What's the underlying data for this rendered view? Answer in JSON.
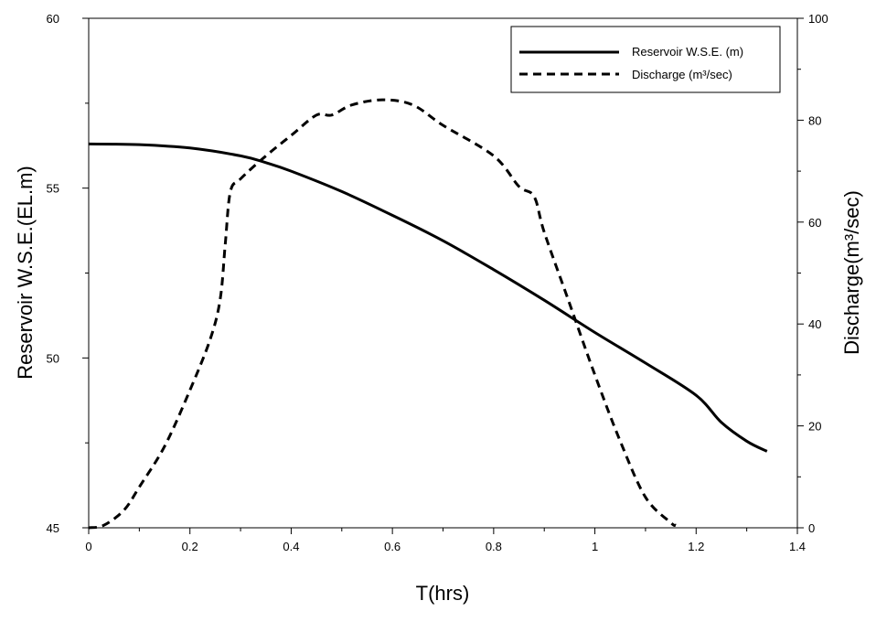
{
  "chart_data": {
    "type": "line",
    "title": "",
    "xlabel": "T(hrs)",
    "ylabel_left": "Reservoir W.S.E.(EL.m)",
    "ylabel_right": "Discharge(m³/sec)",
    "xlim": [
      0,
      1.4
    ],
    "ylim_left": [
      45,
      60
    ],
    "ylim_right": [
      0,
      100
    ],
    "x_ticks": [
      "0",
      "0.2",
      "0.4",
      "0.6",
      "0.8",
      "1",
      "1.2",
      "1.4"
    ],
    "y_left_ticks": [
      "45",
      "50",
      "55",
      "60"
    ],
    "y_right_ticks": [
      "0",
      "20",
      "40",
      "60",
      "80",
      "100"
    ],
    "grid": false,
    "legend_position": "top-right",
    "series": [
      {
        "name": "Reservoir W.S.E. (m)",
        "axis": "left",
        "style": "solid",
        "color": "#000000",
        "x": [
          0,
          0.1,
          0.2,
          0.3,
          0.35,
          0.4,
          0.5,
          0.6,
          0.7,
          0.8,
          0.9,
          1.0,
          1.1,
          1.2,
          1.25,
          1.3,
          1.34
        ],
        "y": [
          56.3,
          56.28,
          56.18,
          55.95,
          55.75,
          55.5,
          54.9,
          54.2,
          53.45,
          52.6,
          51.7,
          50.75,
          49.85,
          48.9,
          48.1,
          47.55,
          47.25
        ]
      },
      {
        "name": "Discharge (m³/sec)",
        "axis": "right",
        "style": "dashed",
        "color": "#000000",
        "x": [
          0,
          0.03,
          0.07,
          0.1,
          0.15,
          0.2,
          0.24,
          0.26,
          0.27,
          0.28,
          0.3,
          0.35,
          0.4,
          0.45,
          0.48,
          0.52,
          0.58,
          0.64,
          0.7,
          0.8,
          0.85,
          0.88,
          0.9,
          0.95,
          1.0,
          1.05,
          1.1,
          1.15,
          1.16
        ],
        "y": [
          0,
          0.5,
          3.5,
          8,
          16,
          27,
          37,
          45,
          56,
          66,
          68.5,
          73,
          77,
          81,
          81,
          83,
          84,
          83,
          79,
          73,
          67,
          65,
          58,
          44,
          30,
          17,
          6,
          1,
          0.5
        ]
      }
    ]
  }
}
